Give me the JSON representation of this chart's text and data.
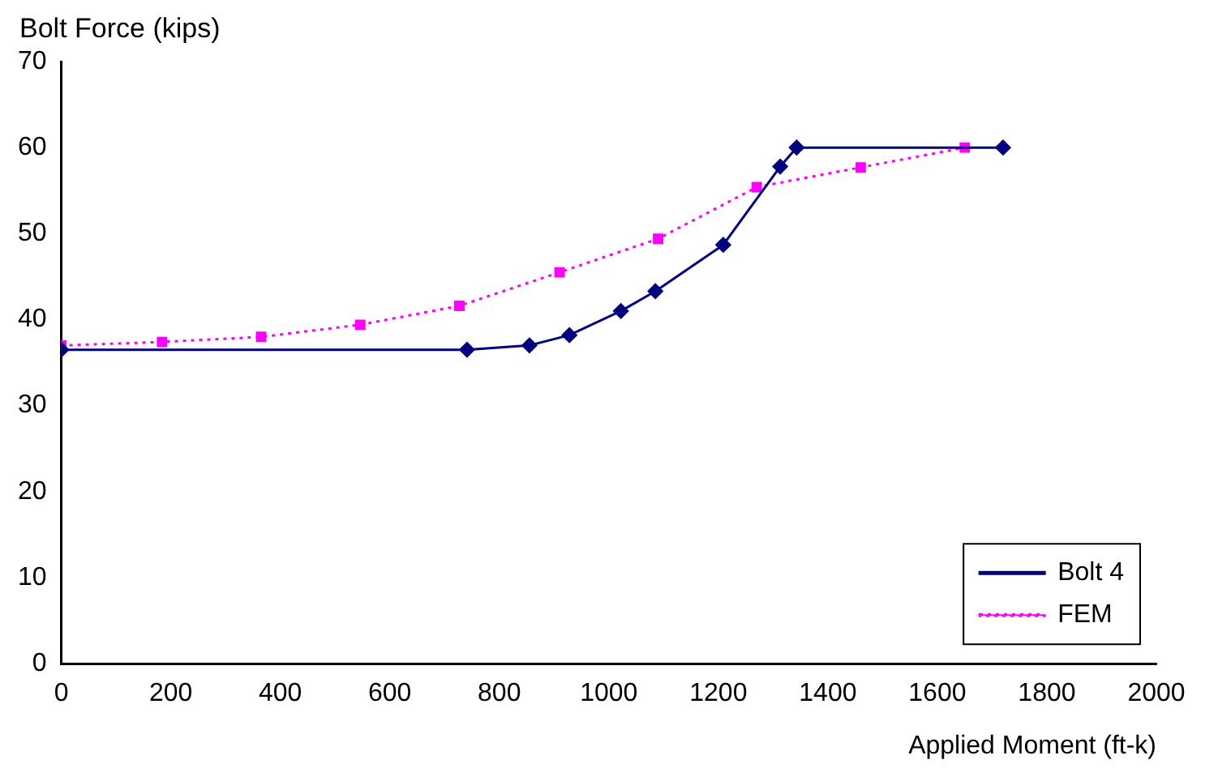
{
  "chart_data": {
    "type": "line",
    "xlabel": "Applied Moment (ft-k)",
    "ylabel": "Bolt Force (kips)",
    "xlim": [
      0,
      2000
    ],
    "xticks": [
      0,
      200,
      400,
      600,
      800,
      1000,
      1200,
      1400,
      1600,
      1800,
      2000
    ],
    "ylim": [
      0,
      70
    ],
    "yticks": [
      0,
      10,
      20,
      30,
      40,
      50,
      60,
      70
    ],
    "grid": false,
    "legend": "bottom right",
    "series": [
      {
        "name": "Bolt 4",
        "color": "#000080",
        "marker": "diamond",
        "line_style": "solid",
        "x": [
          0,
          741,
          855,
          928,
          1022,
          1085,
          1209,
          1313,
          1343,
          1720
        ],
        "values": [
          36.5,
          36.5,
          37,
          38.2,
          41,
          43.3,
          48.7,
          57.8,
          60,
          60
        ]
      },
      {
        "name": "FEM",
        "color": "#ff00ff",
        "marker": "square",
        "line_style": "dotted",
        "x": [
          0,
          184,
          365,
          546,
          727,
          910,
          1090,
          1270,
          1460,
          1650
        ],
        "values": [
          37,
          37.4,
          38,
          39.4,
          41.6,
          45.5,
          49.4,
          55.4,
          57.7,
          60
        ]
      }
    ]
  }
}
